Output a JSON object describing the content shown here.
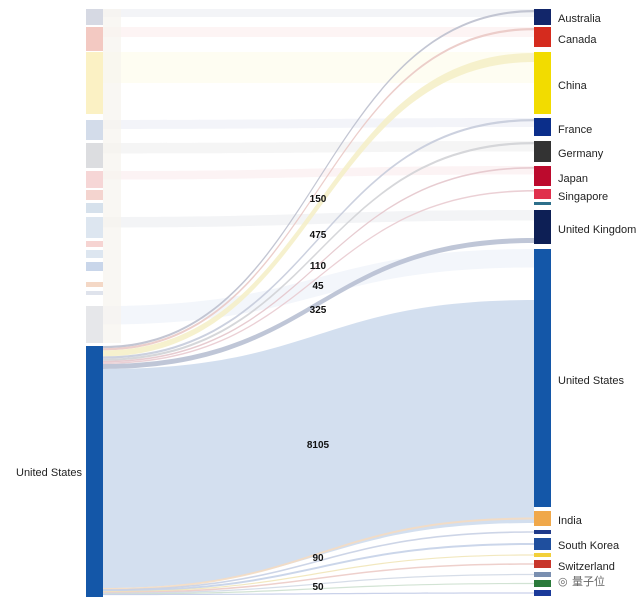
{
  "chart_data": {
    "type": "sankey",
    "source": {
      "name": "United States",
      "color": "#1457a8"
    },
    "left_blocks": [
      {
        "color": "#d6d9e3"
      },
      {
        "color": "#f3c9c2"
      },
      {
        "color": "#fbf1c4"
      },
      {
        "color": "#d3dcea"
      },
      {
        "color": "#dcdde0"
      },
      {
        "color": "#f6d6d6"
      },
      {
        "color": "#f4d4cf"
      },
      {
        "color": "#d6e1ec"
      },
      {
        "color": "#dde6f0"
      },
      {
        "color": "#f6d4d2"
      },
      {
        "color": "#dde6f0"
      },
      {
        "color": "#c9d6ea"
      },
      {
        "color": "#f4d8c6"
      },
      {
        "color": "#dfe3ec"
      },
      {
        "color": "#e6e7ea"
      }
    ],
    "targets": [
      {
        "name": "Australia",
        "color": "#12266a",
        "value": 150
      },
      {
        "name": "Canada",
        "color": "#d52b1e"
      },
      {
        "name": "China",
        "color": "#f2dc00",
        "value": 475
      },
      {
        "name": "France",
        "color": "#0b2e8a",
        "value": 110
      },
      {
        "name": "Germany",
        "color": "#333333"
      },
      {
        "name": "Japan",
        "color": "#bc0a2d",
        "value": 45
      },
      {
        "name": "Singapore",
        "color": "#e0304d"
      },
      {
        "name": "",
        "color": "#2d6f8a"
      },
      {
        "name": "United Kingdom",
        "color": "#0d1f55",
        "value": 325
      },
      {
        "name": "United States",
        "color": "#1457a8",
        "value": 8105
      },
      {
        "name": "India",
        "color": "#f0a84a"
      },
      {
        "name": "",
        "color": "#1f3a8a"
      },
      {
        "name": "South Korea",
        "color": "#1f4f9e",
        "value": 90
      },
      {
        "name": "",
        "color": "#f2d03a"
      },
      {
        "name": "Switzerland",
        "color": "#c8362b",
        "value": 50
      },
      {
        "name": "",
        "color": "#7a8fb0"
      },
      {
        "name": "",
        "color": "#2a7a3a"
      },
      {
        "name": "",
        "color": "#1a3a9a"
      }
    ],
    "flow_labels": [
      "150",
      "475",
      "110",
      "45",
      "325",
      "8105",
      "90",
      "50"
    ]
  },
  "watermark": "量子位"
}
